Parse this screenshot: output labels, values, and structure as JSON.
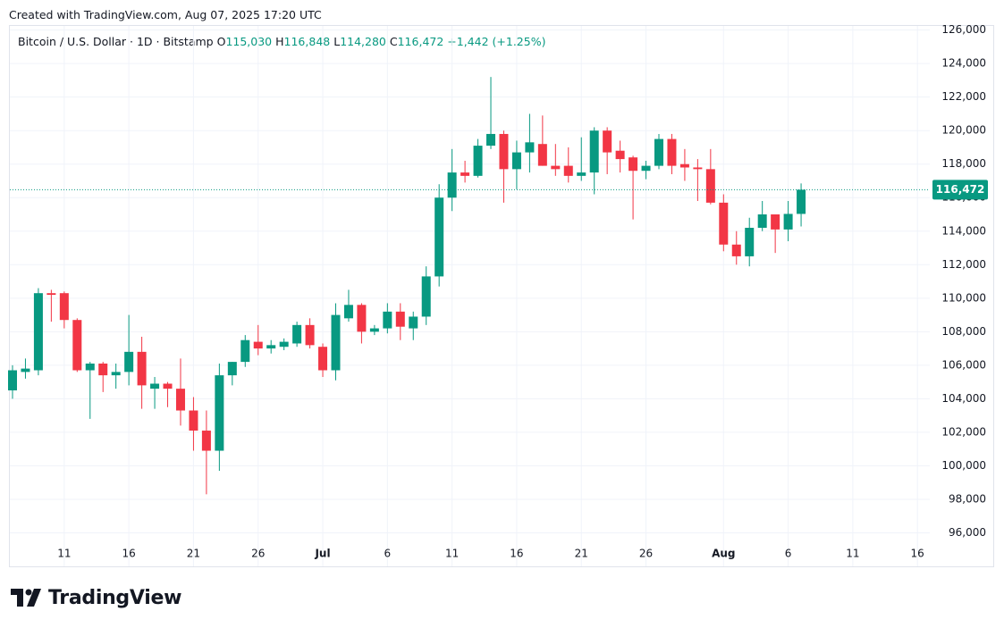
{
  "header_note": "Created with TradingView.com, Aug 07, 2025 17:20 UTC",
  "brand": "TradingView",
  "chart_data": {
    "type": "candlestick",
    "legend": {
      "symbol": "Bitcoin / U.S. Dollar · 1D · Bitstamp",
      "ohlc": [
        {
          "key": "O",
          "value": "115,030"
        },
        {
          "key": "H",
          "value": "116,848"
        },
        {
          "key": "L",
          "value": "114,280"
        },
        {
          "key": "C",
          "value": "116,472"
        }
      ],
      "change": "+1,442 (+1.25%)"
    },
    "x": [
      "2025-06-07",
      "2025-06-08",
      "2025-06-09",
      "2025-06-10",
      "2025-06-11",
      "2025-06-12",
      "2025-06-13",
      "2025-06-14",
      "2025-06-15",
      "2025-06-16",
      "2025-06-17",
      "2025-06-18",
      "2025-06-19",
      "2025-06-20",
      "2025-06-21",
      "2025-06-22",
      "2025-06-23",
      "2025-06-24",
      "2025-06-25",
      "2025-06-26",
      "2025-06-27",
      "2025-06-28",
      "2025-06-29",
      "2025-06-30",
      "2025-07-01",
      "2025-07-02",
      "2025-07-03",
      "2025-07-04",
      "2025-07-05",
      "2025-07-06",
      "2025-07-07",
      "2025-07-08",
      "2025-07-09",
      "2025-07-10",
      "2025-07-11",
      "2025-07-12",
      "2025-07-13",
      "2025-07-14",
      "2025-07-15",
      "2025-07-16",
      "2025-07-17",
      "2025-07-18",
      "2025-07-19",
      "2025-07-20",
      "2025-07-21",
      "2025-07-22",
      "2025-07-23",
      "2025-07-24",
      "2025-07-25",
      "2025-07-26",
      "2025-07-27",
      "2025-07-28",
      "2025-07-29",
      "2025-07-30",
      "2025-07-31",
      "2025-08-01",
      "2025-08-02",
      "2025-08-03",
      "2025-08-04",
      "2025-08-05",
      "2025-08-06",
      "2025-08-07"
    ],
    "open": [
      104500,
      105600,
      105700,
      110300,
      110300,
      108700,
      105700,
      106100,
      105400,
      105600,
      106800,
      104600,
      104900,
      104600,
      103300,
      102100,
      100900,
      105400,
      106200,
      107400,
      107000,
      107100,
      107300,
      108400,
      107100,
      105700,
      108800,
      109600,
      108000,
      108200,
      109200,
      108200,
      108900,
      111300,
      116000,
      117500,
      117300,
      119100,
      119800,
      117700,
      118700,
      119200,
      117900,
      117900,
      117300,
      117500,
      120000,
      118800,
      118400,
      117600,
      117900,
      119500,
      118000,
      117800,
      117700,
      115700,
      113200,
      112500,
      114200,
      115000,
      114100,
      115030
    ],
    "high": [
      106000,
      106400,
      110600,
      110500,
      110400,
      108800,
      106200,
      106200,
      106100,
      109000,
      107700,
      105300,
      105000,
      106400,
      104100,
      103300,
      106100,
      106200,
      107800,
      108400,
      107500,
      107600,
      108600,
      108800,
      107300,
      109700,
      110500,
      109700,
      108400,
      109700,
      109700,
      109200,
      111900,
      116800,
      118900,
      118200,
      119500,
      123200,
      120000,
      119400,
      121000,
      120900,
      119200,
      119000,
      119600,
      120200,
      120200,
      119400,
      118500,
      118200,
      119800,
      119800,
      118900,
      118300,
      118900,
      116200,
      114000,
      114800,
      115800,
      115000,
      115800,
      116848
    ],
    "low": [
      104000,
      105200,
      105400,
      108600,
      108200,
      105600,
      102800,
      104400,
      104600,
      104800,
      103400,
      103400,
      103500,
      102400,
      100900,
      98300,
      99700,
      104800,
      105900,
      106600,
      106700,
      106900,
      107100,
      107000,
      105300,
      105100,
      108600,
      107300,
      107800,
      107900,
      107500,
      107500,
      108400,
      110700,
      115200,
      116900,
      117200,
      118900,
      115700,
      116500,
      117500,
      117900,
      117300,
      116900,
      117000,
      116200,
      117400,
      117500,
      114700,
      117100,
      117700,
      117400,
      117000,
      115800,
      115600,
      112800,
      112000,
      111900,
      114000,
      112700,
      113400,
      114280
    ],
    "close": [
      105700,
      105800,
      110300,
      110200,
      108700,
      105700,
      106100,
      105400,
      105600,
      106800,
      104800,
      104900,
      104600,
      103300,
      102100,
      100900,
      105400,
      106200,
      107500,
      107000,
      107200,
      107400,
      108400,
      107200,
      105700,
      109000,
      109600,
      108000,
      108200,
      109200,
      108300,
      108900,
      111300,
      116000,
      117500,
      117300,
      119100,
      119800,
      117700,
      118700,
      119300,
      117900,
      117700,
      117300,
      117500,
      120000,
      118700,
      118300,
      117600,
      117900,
      119500,
      117900,
      117800,
      117700,
      115700,
      113200,
      112500,
      114200,
      115000,
      114100,
      115030,
      116472
    ],
    "up_color": "#089981",
    "down_color": "#f23645",
    "last_price": {
      "value": 116472,
      "label": "116,472"
    },
    "ylim": [
      94000,
      126300
    ],
    "yticks": [
      {
        "value": 96000,
        "label": "96,000"
      },
      {
        "value": 98000,
        "label": "98,000"
      },
      {
        "value": 100000,
        "label": "100,000"
      },
      {
        "value": 102000,
        "label": "102,000"
      },
      {
        "value": 104000,
        "label": "104,000"
      },
      {
        "value": 106000,
        "label": "106,000"
      },
      {
        "value": 108000,
        "label": "108,000"
      },
      {
        "value": 110000,
        "label": "110,000"
      },
      {
        "value": 112000,
        "label": "112,000"
      },
      {
        "value": 114000,
        "label": "114,000"
      },
      {
        "value": 116000,
        "label": "116,000"
      },
      {
        "value": 118000,
        "label": "118,000"
      },
      {
        "value": 120000,
        "label": "120,000"
      },
      {
        "value": 122000,
        "label": "122,000"
      },
      {
        "value": 124000,
        "label": "124,000"
      },
      {
        "value": 126000,
        "label": "126,000"
      }
    ],
    "xticks": [
      {
        "value": "2025-06-11",
        "label": "11"
      },
      {
        "value": "2025-06-16",
        "label": "16"
      },
      {
        "value": "2025-06-21",
        "label": "21"
      },
      {
        "value": "2025-06-26",
        "label": "26"
      },
      {
        "value": "2025-07-01",
        "label": "Jul"
      },
      {
        "value": "2025-07-06",
        "label": "6"
      },
      {
        "value": "2025-07-11",
        "label": "11"
      },
      {
        "value": "2025-07-16",
        "label": "16"
      },
      {
        "value": "2025-07-21",
        "label": "21"
      },
      {
        "value": "2025-07-26",
        "label": "26"
      },
      {
        "value": "2025-08-01",
        "label": "Aug"
      },
      {
        "value": "2025-08-06",
        "label": "6"
      },
      {
        "value": "2025-08-11",
        "label": "11"
      },
      {
        "value": "2025-08-16",
        "label": "16"
      }
    ],
    "grid": true
  }
}
